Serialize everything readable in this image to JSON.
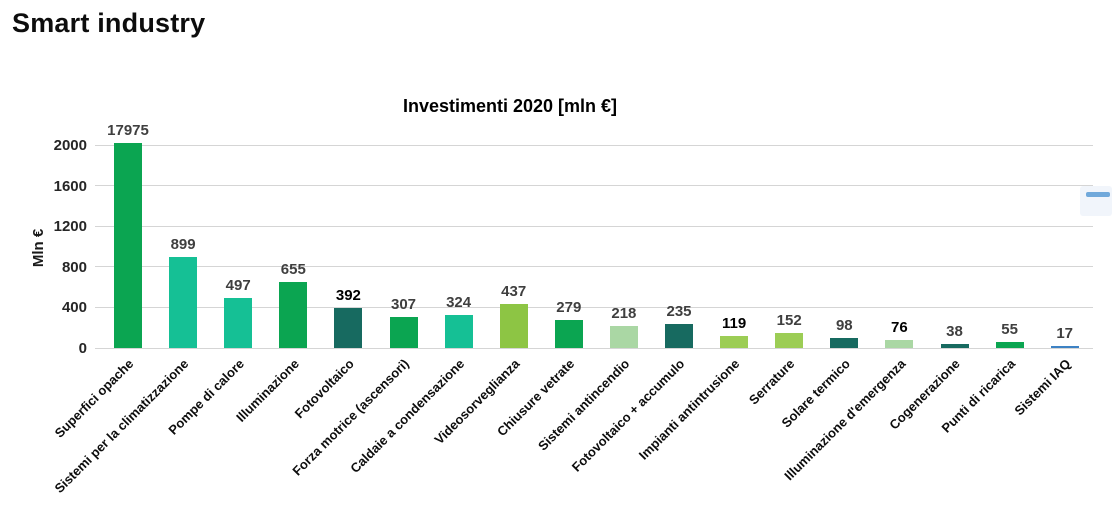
{
  "page": {
    "title": "Smart industry"
  },
  "chart_data": {
    "type": "bar",
    "title": "Investimenti 2020 [mln €]",
    "xlabel": "",
    "ylabel": "Mln €",
    "ylim": [
      0,
      2000
    ],
    "yticks": [
      0,
      400,
      800,
      1200,
      1600,
      2000
    ],
    "grid": true,
    "legend": false,
    "categories": [
      "Superfici opache",
      "Sistemi per la climatizzazione",
      "Pompe di calore",
      "Illuminazione",
      "Fotovoltaico",
      "Forza motrice (ascensori)",
      "Caldaie a condensazione",
      "Videosorveglianza",
      "Chiusure vetrate",
      "Sistemi antincendio",
      "Fotovoltaico + accumulo",
      "Impianti antintrusione",
      "Serrature",
      "Solare termico",
      "Illuminazione d'emergenza",
      "Cogenerazione",
      "Punti di ricarica",
      "Sistemi IAQ"
    ],
    "values": [
      17975,
      899,
      497,
      655,
      392,
      307,
      324,
      437,
      279,
      218,
      235,
      119,
      152,
      98,
      76,
      38,
      55,
      17
    ],
    "palette": {
      "green": "#0ba551",
      "mint": "#15c095",
      "dark_teal": "#176a60",
      "lime": "#8dc544",
      "lime_light": "#9ccd55",
      "pale_green": "#aad7a4",
      "blue": "#3d82c4"
    },
    "bar_colors": [
      "green",
      "mint",
      "mint",
      "green",
      "dark_teal",
      "green",
      "mint",
      "lime",
      "green",
      "pale_green",
      "dark_teal",
      "lime_light",
      "lime_light",
      "dark_teal",
      "pale_green",
      "dark_teal",
      "green",
      "blue"
    ],
    "value_label_palette": {
      "gray": "#3f3f3f",
      "black": "#000000"
    },
    "value_label_colors": [
      "gray",
      "gray",
      "gray",
      "gray",
      "black",
      "gray",
      "gray",
      "gray",
      "gray",
      "gray",
      "gray",
      "black",
      "gray",
      "gray",
      "black",
      "gray",
      "gray",
      "gray"
    ]
  }
}
